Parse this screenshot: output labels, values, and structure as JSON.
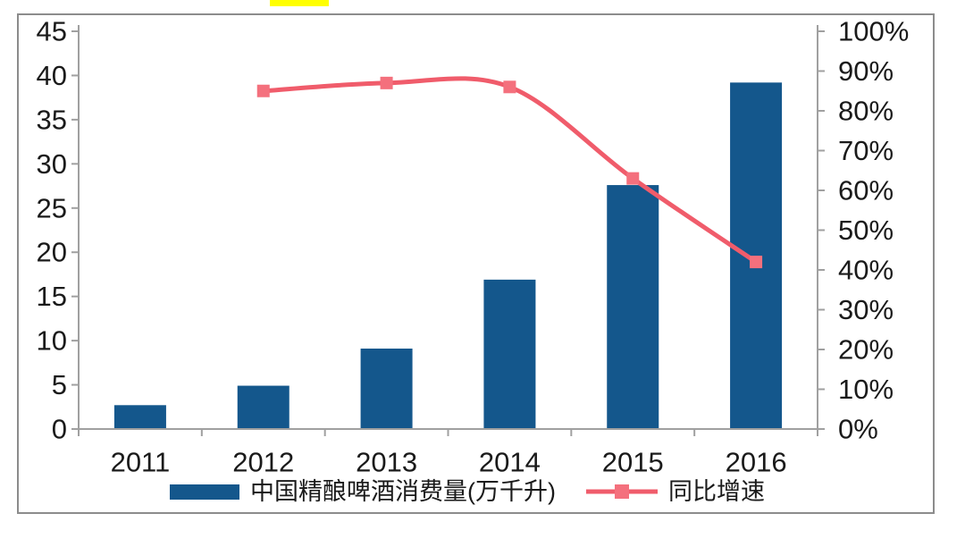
{
  "page": {
    "highlight_mark_color": "#ffff00",
    "frame_border_color": "#8c8c8c",
    "background_color": "#ffffff"
  },
  "chart_data": {
    "type": "combo-bar-line",
    "title": "",
    "categories": [
      "2011",
      "2012",
      "2013",
      "2014",
      "2015",
      "2016"
    ],
    "series": [
      {
        "name": "中国精酿啤酒消费量(万千升)",
        "type": "bar",
        "axis": "left",
        "color": "#14578c",
        "values": [
          2.7,
          4.9,
          9.1,
          16.9,
          27.6,
          39.2
        ]
      },
      {
        "name": "同比增速",
        "type": "line",
        "axis": "right",
        "color": "#f05c6b",
        "marker_color": "#f4707d",
        "values": [
          null,
          85,
          87,
          86,
          63,
          42
        ]
      }
    ],
    "left_axis": {
      "min": 0,
      "max": 45,
      "step": 5,
      "tick_labels": [
        "0",
        "5",
        "10",
        "15",
        "20",
        "25",
        "30",
        "35",
        "40",
        "45"
      ]
    },
    "right_axis": {
      "min": 0,
      "max": 100,
      "step": 10,
      "tick_labels": [
        "0%",
        "10%",
        "20%",
        "30%",
        "40%",
        "50%",
        "60%",
        "70%",
        "80%",
        "90%",
        "100%"
      ]
    },
    "axis_color": "#a0a0a0",
    "label_color": "#1a1a1a",
    "grid": false,
    "legend_position": "bottom"
  }
}
